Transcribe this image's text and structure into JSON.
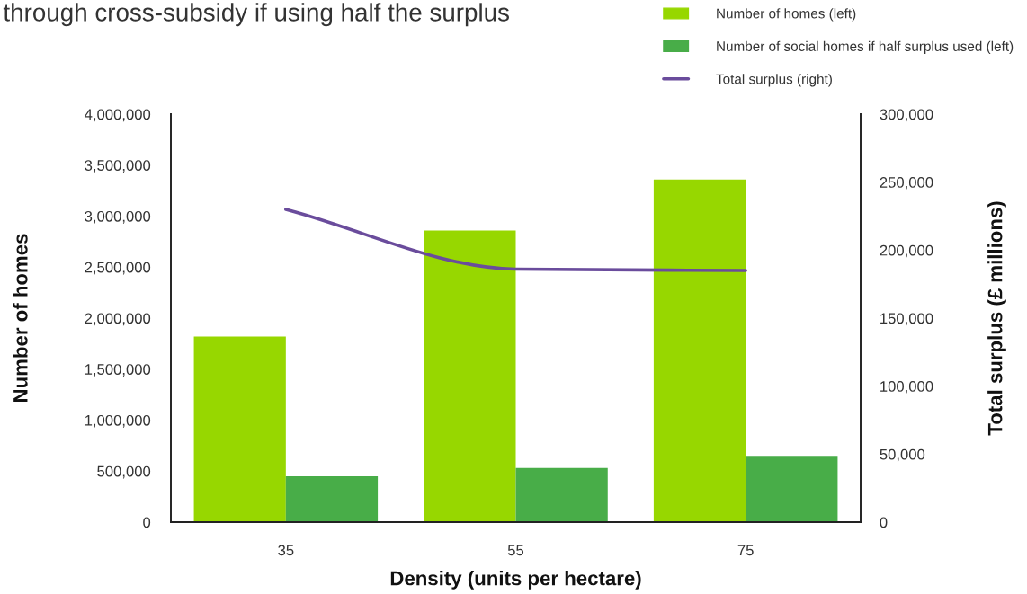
{
  "chart_data": {
    "type": "bar",
    "title": "through cross-subsidy if using half the surplus",
    "xlabel": "Density (units per hectare)",
    "ylabel": "Number of homes",
    "y2label": "Total surplus (£ millions)",
    "categories": [
      "35",
      "55",
      "75"
    ],
    "series": [
      {
        "name": "Number of homes (left)",
        "color": "#97d700",
        "values": [
          1820000,
          2860000,
          3360000
        ]
      },
      {
        "name": "Number of social homes if half surplus used (left)",
        "color": "#48ad48",
        "values": [
          450000,
          530000,
          650000
        ]
      },
      {
        "name": "Total surplus (right)",
        "type": "line",
        "axis": "y2",
        "color": "#6a4c9c",
        "values": [
          230000,
          186000,
          185000
        ]
      }
    ],
    "ylim": [
      0,
      4000000
    ],
    "yticks": [
      {
        "value": 0,
        "label": "0"
      },
      {
        "value": 500000,
        "label": "500,000"
      },
      {
        "value": 1000000,
        "label": "1,000,000"
      },
      {
        "value": 1500000,
        "label": "1,500,000"
      },
      {
        "value": 2000000,
        "label": "2,000,000"
      },
      {
        "value": 2500000,
        "label": "2,500,000"
      },
      {
        "value": 3000000,
        "label": "3,000,000"
      },
      {
        "value": 3500000,
        "label": "3,500,000"
      },
      {
        "value": 4000000,
        "label": "4,000,000"
      }
    ],
    "y2lim": [
      0,
      300000
    ],
    "y2ticks": [
      {
        "value": 0,
        "label": "0"
      },
      {
        "value": 50000,
        "label": "50,000"
      },
      {
        "value": 100000,
        "label": "100,000"
      },
      {
        "value": 150000,
        "label": "150,000"
      },
      {
        "value": 200000,
        "label": "200,000"
      },
      {
        "value": 250000,
        "label": "250,000"
      },
      {
        "value": 300000,
        "label": "300,000"
      }
    ],
    "legend": "top right"
  }
}
